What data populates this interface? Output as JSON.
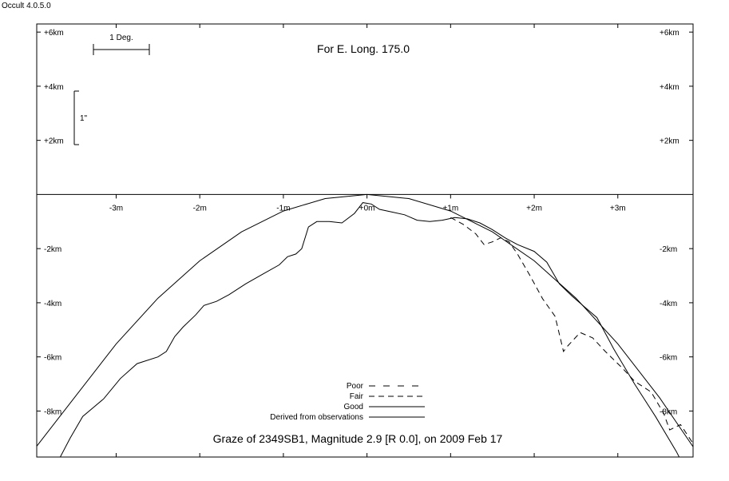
{
  "app_title": "Occult 4.0.5.0",
  "chart_data": {
    "type": "line",
    "title": "Graze of  2349SB1,  Magnitude 2.9 [R 0.0],  on 2009 Feb 17",
    "subtitle": "For E. Long. 175.0",
    "scale_bar_label": "1 Deg.",
    "vertical_scale_label": "1\"",
    "xlim": [
      -3.95,
      3.9
    ],
    "ylim": [
      -9.7,
      6.3
    ],
    "x_ticks": [
      -3,
      -2,
      -1,
      0,
      1,
      2,
      3
    ],
    "x_tick_labels": [
      "-3m",
      "-2m",
      "-1m",
      "+0m",
      "+1m",
      "+2m",
      "+3m"
    ],
    "y_ticks_upper": [
      6,
      4,
      2
    ],
    "y_tick_labels_upper": [
      "+6km",
      "+4km",
      "+2km"
    ],
    "y_ticks_lower": [
      -2,
      -4,
      -6,
      -8
    ],
    "y_tick_labels_lower": [
      "-2km",
      "-4km",
      "-6km",
      "-8km"
    ],
    "legend": [
      "Poor",
      "Fair",
      "Good",
      "Derived from observations"
    ],
    "series": [
      {
        "name": "Good",
        "style": "solid",
        "points": [
          [
            -3.72,
            -10
          ],
          [
            -3.55,
            -9.0
          ],
          [
            -3.4,
            -8.2
          ],
          [
            -3.15,
            -7.55
          ],
          [
            -2.95,
            -6.8
          ],
          [
            -2.75,
            -6.25
          ],
          [
            -2.5,
            -6.0
          ],
          [
            -2.4,
            -5.8
          ],
          [
            -2.3,
            -5.25
          ],
          [
            -2.2,
            -4.9
          ],
          [
            -2.05,
            -4.45
          ],
          [
            -1.95,
            -4.1
          ],
          [
            -1.8,
            -3.95
          ],
          [
            -1.65,
            -3.7
          ],
          [
            -1.45,
            -3.3
          ],
          [
            -1.25,
            -2.95
          ],
          [
            -1.05,
            -2.6
          ],
          [
            -0.95,
            -2.3
          ],
          [
            -0.85,
            -2.2
          ],
          [
            -0.78,
            -2.0
          ],
          [
            -0.7,
            -1.2
          ],
          [
            -0.6,
            -1.0
          ],
          [
            -0.45,
            -1.0
          ],
          [
            -0.3,
            -1.05
          ],
          [
            -0.15,
            -0.7
          ],
          [
            -0.05,
            -0.3
          ],
          [
            0.05,
            -0.35
          ],
          [
            0.15,
            -0.55
          ],
          [
            0.3,
            -0.65
          ],
          [
            0.45,
            -0.75
          ],
          [
            0.6,
            -0.95
          ],
          [
            0.75,
            -1.0
          ],
          [
            0.9,
            -0.95
          ],
          [
            1.05,
            -0.85
          ],
          [
            1.2,
            -0.9
          ],
          [
            1.35,
            -1.05
          ],
          [
            1.5,
            -1.3
          ],
          [
            1.65,
            -1.6
          ],
          [
            1.8,
            -1.85
          ],
          [
            2.0,
            -2.1
          ],
          [
            2.15,
            -2.5
          ],
          [
            2.3,
            -3.3
          ],
          [
            2.45,
            -3.75
          ],
          [
            2.6,
            -4.15
          ],
          [
            2.75,
            -4.55
          ],
          [
            2.95,
            -5.7
          ],
          [
            3.2,
            -7.0
          ],
          [
            3.45,
            -8.2
          ],
          [
            3.7,
            -9.5
          ],
          [
            3.8,
            -10.1
          ]
        ]
      },
      {
        "name": "Fair",
        "style": "dashed",
        "points": [
          [
            1.0,
            -0.85
          ],
          [
            1.15,
            -1.1
          ],
          [
            1.3,
            -1.45
          ],
          [
            1.4,
            -1.85
          ],
          [
            1.5,
            -1.75
          ],
          [
            1.6,
            -1.6
          ],
          [
            1.7,
            -1.75
          ],
          [
            1.8,
            -2.2
          ],
          [
            1.95,
            -3.0
          ],
          [
            2.1,
            -3.85
          ],
          [
            2.25,
            -4.5
          ],
          [
            2.35,
            -5.8
          ],
          [
            2.4,
            -5.6
          ],
          [
            2.55,
            -5.1
          ],
          [
            2.7,
            -5.3
          ],
          [
            2.85,
            -5.8
          ],
          [
            3.05,
            -6.4
          ],
          [
            3.2,
            -6.9
          ],
          [
            3.4,
            -7.3
          ],
          [
            3.55,
            -8.1
          ],
          [
            3.62,
            -8.7
          ],
          [
            3.75,
            -8.5
          ],
          [
            3.9,
            -9.2
          ]
        ]
      },
      {
        "name": "Derived from observations",
        "style": "solid",
        "points": [
          [
            -3.95,
            -9.3
          ],
          [
            -3.5,
            -7.51
          ],
          [
            -3.0,
            -5.52
          ],
          [
            -2.5,
            -3.83
          ],
          [
            -2.0,
            -2.45
          ],
          [
            -1.5,
            -1.38
          ],
          [
            -1.0,
            -0.61
          ],
          [
            -0.5,
            -0.15
          ],
          [
            0.0,
            0.0
          ],
          [
            0.5,
            -0.15
          ],
          [
            1.0,
            -0.61
          ],
          [
            1.5,
            -1.38
          ],
          [
            2.0,
            -2.45
          ],
          [
            2.5,
            -3.83
          ],
          [
            3.0,
            -5.52
          ],
          [
            3.5,
            -7.51
          ],
          [
            3.9,
            -9.32
          ]
        ]
      }
    ]
  }
}
